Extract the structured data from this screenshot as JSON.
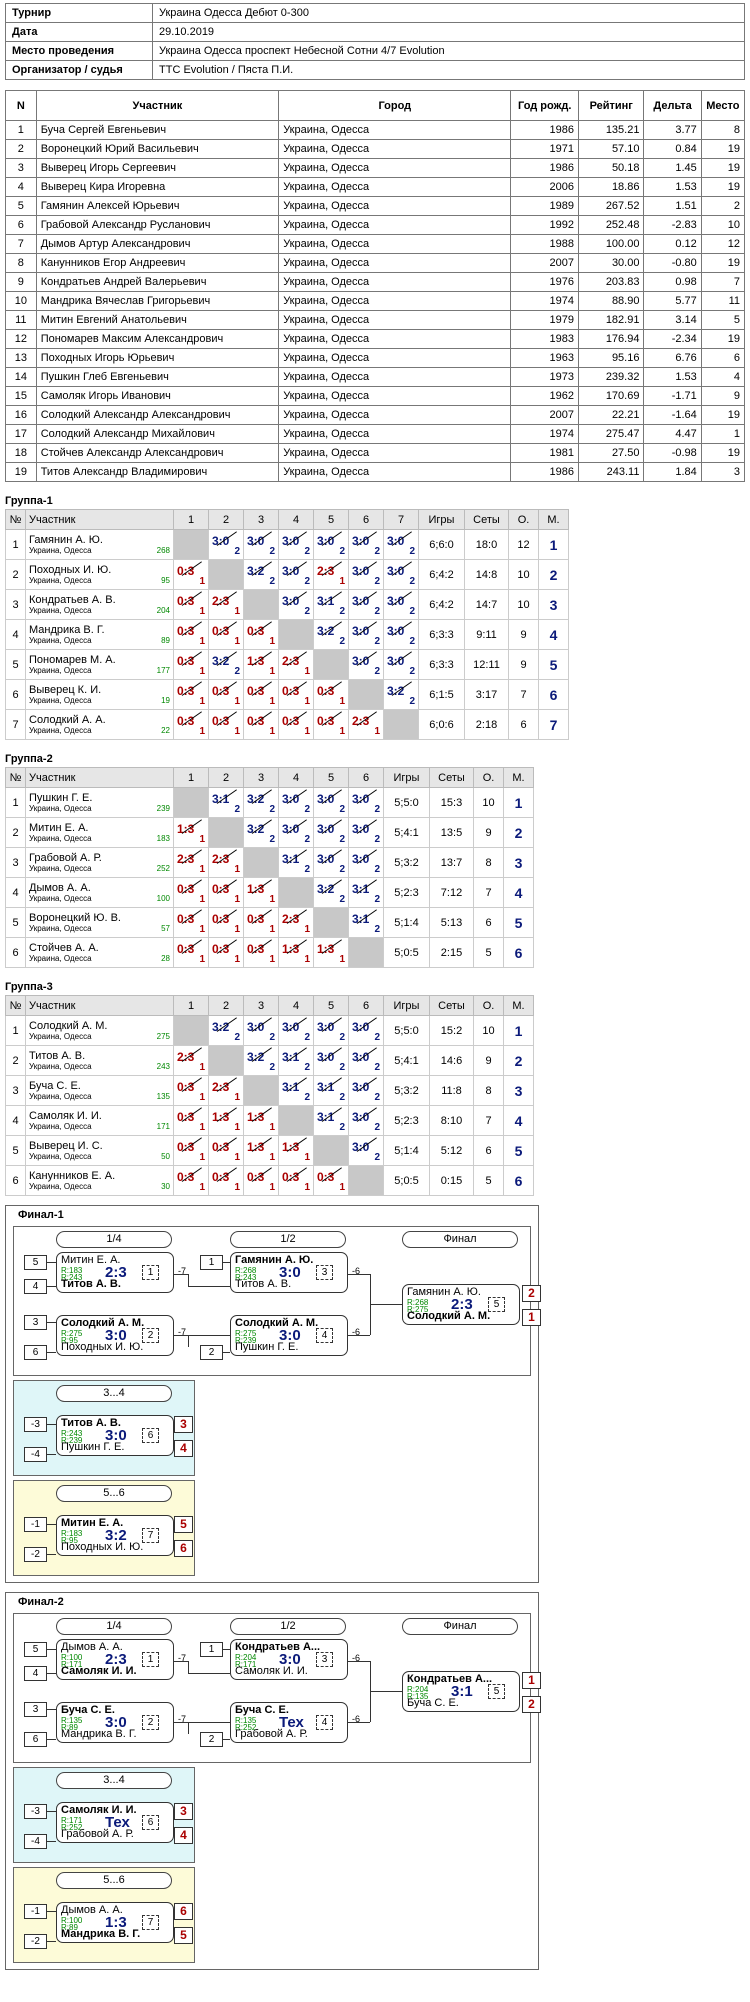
{
  "info": [
    {
      "k": "Турнир",
      "v": "Украина Одесса Дебют 0-300"
    },
    {
      "k": "Дата",
      "v": "29.10.2019"
    },
    {
      "k": "Место проведения",
      "v": "Украина Одесса проспект Небесной Сотни 4/7 Evolution"
    },
    {
      "k": "Организатор / судья",
      "v": "TTC Evolution / Пяста П.И."
    }
  ],
  "plist_headers": [
    "N",
    "Участник",
    "Город",
    "Год рожд.",
    "Рейтинг",
    "Дельта",
    "Место"
  ],
  "players": [
    [
      "1",
      "Буча Сергей Евгеньевич",
      "Украина, Одесса",
      "1986",
      "135.21",
      "3.77",
      "8"
    ],
    [
      "2",
      "Воронецкий Юрий Васильевич",
      "Украина, Одесса",
      "1971",
      "57.10",
      "0.84",
      "19"
    ],
    [
      "3",
      "Выверец Игорь Сергеевич",
      "Украина, Одесса",
      "1986",
      "50.18",
      "1.45",
      "19"
    ],
    [
      "4",
      "Выверец Кира Игоревна",
      "Украина, Одесса",
      "2006",
      "18.86",
      "1.53",
      "19"
    ],
    [
      "5",
      "Гамянин Алексей Юрьевич",
      "Украина, Одесса",
      "1989",
      "267.52",
      "1.51",
      "2"
    ],
    [
      "6",
      "Грабовой Александр Русланович",
      "Украина, Одесса",
      "1992",
      "252.48",
      "-2.83",
      "10"
    ],
    [
      "7",
      "Дымов Артур Александрович",
      "Украина, Одесса",
      "1988",
      "100.00",
      "0.12",
      "12"
    ],
    [
      "8",
      "Канунников Егор Андреевич",
      "Украина, Одесса",
      "2007",
      "30.00",
      "-0.80",
      "19"
    ],
    [
      "9",
      "Кондратьев Андрей Валерьевич",
      "Украина, Одесса",
      "1976",
      "203.83",
      "0.98",
      "7"
    ],
    [
      "10",
      "Мандрика Вячеслав Григорьевич",
      "Украина, Одесса",
      "1974",
      "88.90",
      "5.77",
      "11"
    ],
    [
      "11",
      "Митин Евгений Анатольевич",
      "Украина, Одесса",
      "1979",
      "182.91",
      "3.14",
      "5"
    ],
    [
      "12",
      "Пономарев Максим Александрович",
      "Украина, Одесса",
      "1983",
      "176.94",
      "-2.34",
      "19"
    ],
    [
      "13",
      "Походных Игорь Юрьевич",
      "Украина, Одесса",
      "1963",
      "95.16",
      "6.76",
      "6"
    ],
    [
      "14",
      "Пушкин Глеб Евгеньевич",
      "Украина, Одесса",
      "1973",
      "239.32",
      "1.53",
      "4"
    ],
    [
      "15",
      "Самоляк Игорь Иванович",
      "Украина, Одесса",
      "1962",
      "170.69",
      "-1.71",
      "9"
    ],
    [
      "16",
      "Солодкий Александр Александрович",
      "Украина, Одесса",
      "2007",
      "22.21",
      "-1.64",
      "19"
    ],
    [
      "17",
      "Солодкий Александр Михайлович",
      "Украина, Одесса",
      "1974",
      "275.47",
      "4.47",
      "1"
    ],
    [
      "18",
      "Стойчев Александр Александрович",
      "Украина, Одесса",
      "1981",
      "27.50",
      "-0.98",
      "19"
    ],
    [
      "19",
      "Титов Александр Владимирович",
      "Украина, Одесса",
      "1986",
      "243.11",
      "1.84",
      "3"
    ]
  ],
  "group_headers": {
    "no": "№",
    "name": "Участник",
    "games": "Игры",
    "sets": "Сеты",
    "pts": "О.",
    "place": "М."
  },
  "groups": [
    {
      "title": "Группа-1",
      "rows": [
        {
          "n": "1",
          "name": "Гамянин А. Ю.",
          "city": "Украина, Одесса",
          "rating": "268",
          "res": [
            null,
            "3:0|2",
            "3:0|2",
            "3:0|2",
            "3:0|2",
            "3:0|2",
            "3:0|2"
          ],
          "games": "6;6:0",
          "sets": "18:0",
          "pts": "12",
          "place": "1"
        },
        {
          "n": "2",
          "name": "Походных И. Ю.",
          "city": "Украина, Одесса",
          "rating": "95",
          "res": [
            "0:3|1",
            null,
            "3:2|2",
            "3:0|2",
            "2:3|1",
            "3:0|2",
            "3:0|2"
          ],
          "games": "6;4:2",
          "sets": "14:8",
          "pts": "10",
          "place": "2"
        },
        {
          "n": "3",
          "name": "Кондратьев А. В.",
          "city": "Украина, Одесса",
          "rating": "204",
          "res": [
            "0:3|1",
            "2:3|1",
            null,
            "3:0|2",
            "3:1|2",
            "3:0|2",
            "3:0|2"
          ],
          "games": "6;4:2",
          "sets": "14:7",
          "pts": "10",
          "place": "3"
        },
        {
          "n": "4",
          "name": "Мандрика В. Г.",
          "city": "Украина, Одесса",
          "rating": "89",
          "res": [
            "0:3|1",
            "0:3|1",
            "0:3|1",
            null,
            "3:2|2",
            "3:0|2",
            "3:0|2"
          ],
          "games": "6;3:3",
          "sets": "9:11",
          "pts": "9",
          "place": "4"
        },
        {
          "n": "5",
          "name": "Пономарев М. А.",
          "city": "Украина, Одесса",
          "rating": "177",
          "res": [
            "0:3|1",
            "3:2|2",
            "1:3|1",
            "2:3|1",
            null,
            "3:0|2",
            "3:0|2"
          ],
          "games": "6;3:3",
          "sets": "12:11",
          "pts": "9",
          "place": "5"
        },
        {
          "n": "6",
          "name": "Выверец К. И.",
          "city": "Украина, Одесса",
          "rating": "19",
          "res": [
            "0:3|1",
            "0:3|1",
            "0:3|1",
            "0:3|1",
            "0:3|1",
            null,
            "3:2|2"
          ],
          "games": "6;1:5",
          "sets": "3:17",
          "pts": "7",
          "place": "6"
        },
        {
          "n": "7",
          "name": "Солодкий А. А.",
          "city": "Украина, Одесса",
          "rating": "22",
          "res": [
            "0:3|1",
            "0:3|1",
            "0:3|1",
            "0:3|1",
            "0:3|1",
            "2:3|1",
            null
          ],
          "games": "6;0:6",
          "sets": "2:18",
          "pts": "6",
          "place": "7"
        }
      ]
    },
    {
      "title": "Группа-2",
      "rows": [
        {
          "n": "1",
          "name": "Пушкин Г. Е.",
          "city": "Украина, Одесса",
          "rating": "239",
          "res": [
            null,
            "3:1|2",
            "3:2|2",
            "3:0|2",
            "3:0|2",
            "3:0|2"
          ],
          "games": "5;5:0",
          "sets": "15:3",
          "pts": "10",
          "place": "1"
        },
        {
          "n": "2",
          "name": "Митин Е. А.",
          "city": "Украина, Одесса",
          "rating": "183",
          "res": [
            "1:3|1",
            null,
            "3:2|2",
            "3:0|2",
            "3:0|2",
            "3:0|2"
          ],
          "games": "5;4:1",
          "sets": "13:5",
          "pts": "9",
          "place": "2"
        },
        {
          "n": "3",
          "name": "Грабовой А. Р.",
          "city": "Украина, Одесса",
          "rating": "252",
          "res": [
            "2:3|1",
            "2:3|1",
            null,
            "3:1|2",
            "3:0|2",
            "3:0|2"
          ],
          "games": "5;3:2",
          "sets": "13:7",
          "pts": "8",
          "place": "3"
        },
        {
          "n": "4",
          "name": "Дымов А. А.",
          "city": "Украина, Одесса",
          "rating": "100",
          "res": [
            "0:3|1",
            "0:3|1",
            "1:3|1",
            null,
            "3:2|2",
            "3:1|2"
          ],
          "games": "5;2:3",
          "sets": "7:12",
          "pts": "7",
          "place": "4"
        },
        {
          "n": "5",
          "name": "Воронецкий Ю. В.",
          "city": "Украина, Одесса",
          "rating": "57",
          "res": [
            "0:3|1",
            "0:3|1",
            "0:3|1",
            "2:3|1",
            null,
            "3:1|2"
          ],
          "games": "5;1:4",
          "sets": "5:13",
          "pts": "6",
          "place": "5"
        },
        {
          "n": "6",
          "name": "Стойчев А. А.",
          "city": "Украина, Одесса",
          "rating": "28",
          "res": [
            "0:3|1",
            "0:3|1",
            "0:3|1",
            "1:3|1",
            "1:3|1",
            null
          ],
          "games": "5;0:5",
          "sets": "2:15",
          "pts": "5",
          "place": "6"
        }
      ]
    },
    {
      "title": "Группа-3",
      "rows": [
        {
          "n": "1",
          "name": "Солодкий А. М.",
          "city": "Украина, Одесса",
          "rating": "275",
          "res": [
            null,
            "3:2|2",
            "3:0|2",
            "3:0|2",
            "3:0|2",
            "3:0|2"
          ],
          "games": "5;5:0",
          "sets": "15:2",
          "pts": "10",
          "place": "1"
        },
        {
          "n": "2",
          "name": "Титов А. В.",
          "city": "Украина, Одесса",
          "rating": "243",
          "res": [
            "2:3|1",
            null,
            "3:2|2",
            "3:1|2",
            "3:0|2",
            "3:0|2"
          ],
          "games": "5;4:1",
          "sets": "14:6",
          "pts": "9",
          "place": "2"
        },
        {
          "n": "3",
          "name": "Буча С. Е.",
          "city": "Украина, Одесса",
          "rating": "135",
          "res": [
            "0:3|1",
            "2:3|1",
            null,
            "3:1|2",
            "3:1|2",
            "3:0|2"
          ],
          "games": "5;3:2",
          "sets": "11:8",
          "pts": "8",
          "place": "3"
        },
        {
          "n": "4",
          "name": "Самоляк И. И.",
          "city": "Украина, Одесса",
          "rating": "171",
          "res": [
            "0:3|1",
            "1:3|1",
            "1:3|1",
            null,
            "3:1|2",
            "3:0|2"
          ],
          "games": "5;2:3",
          "sets": "8:10",
          "pts": "7",
          "place": "4"
        },
        {
          "n": "5",
          "name": "Выверец И. С.",
          "city": "Украина, Одесса",
          "rating": "50",
          "res": [
            "0:3|1",
            "0:3|1",
            "1:3|1",
            "1:3|1",
            null,
            "3:0|2"
          ],
          "games": "5;1:4",
          "sets": "5:12",
          "pts": "6",
          "place": "5"
        },
        {
          "n": "6",
          "name": "Канунников Е. А.",
          "city": "Украина, Одесса",
          "rating": "30",
          "res": [
            "0:3|1",
            "0:3|1",
            "0:3|1",
            "0:3|1",
            "0:3|1",
            null
          ],
          "games": "5;0:5",
          "sets": "0:15",
          "pts": "5",
          "place": "6"
        }
      ]
    }
  ],
  "finals": [
    {
      "title": "Финал-1",
      "labels": {
        "q": "1/4",
        "s": "1/2",
        "f": "Финал"
      },
      "qf1": {
        "seed1": "5",
        "seed2": "4",
        "p1": "Митин Е. А.",
        "r1": "R:183",
        "r2": "R:243",
        "p2": "Титов А. В.",
        "score": "2:3",
        "mn": "1",
        "ref": "-7"
      },
      "qf2": {
        "seed1": "3",
        "seed2": "6",
        "p1": "Солодкий А. М.",
        "r1": "R:275",
        "r2": "R:95",
        "p2": "Походных И. Ю.",
        "score": "3:0",
        "mn": "2",
        "ref": "-7"
      },
      "sf1": {
        "seed": "1",
        "p1": "Гамянин А. Ю.",
        "r1": "R:268",
        "r2": "R:243",
        "p2": "Титов А. В.",
        "score": "3:0",
        "mn": "3",
        "ref": "-6"
      },
      "sf2": {
        "seed": "2",
        "p1": "Солодкий А. М.",
        "r1": "R:275",
        "r2": "R:239",
        "p2": "Пушкин Г. Е.",
        "score": "3:0",
        "mn": "4",
        "ref": "-6"
      },
      "fin": {
        "p1": "Гамянин А. Ю.",
        "r1": "R:268",
        "r2": "R:275",
        "p2": "Солодкий А. М.",
        "score": "2:3",
        "mn": "5",
        "pl1": "2",
        "pl2": "1"
      },
      "m34": {
        "label": "3...4",
        "s1": "-3",
        "s2": "-4",
        "p1": "Титов А. В.",
        "r1": "R:243",
        "r2": "R:239",
        "p2": "Пушкин Г. Е.",
        "score": "3:0",
        "mn": "6",
        "pl1": "3",
        "pl2": "4"
      },
      "m56": {
        "label": "5...6",
        "s1": "-1",
        "s2": "-2",
        "p1": "Митин Е. А.",
        "r1": "R:183",
        "r2": "R:95",
        "p2": "Походных И. Ю.",
        "score": "3:2",
        "mn": "7",
        "pl1": "5",
        "pl2": "6"
      }
    },
    {
      "title": "Финал-2",
      "labels": {
        "q": "1/4",
        "s": "1/2",
        "f": "Финал"
      },
      "qf1": {
        "seed1": "5",
        "seed2": "4",
        "p1": "Дымов А. А.",
        "r1": "R:100",
        "r2": "R:171",
        "p2": "Самоляк И. И.",
        "score": "2:3",
        "mn": "1",
        "ref": "-7"
      },
      "qf2": {
        "seed1": "3",
        "seed2": "6",
        "p1": "Буча С. Е.",
        "r1": "R:135",
        "r2": "R:89",
        "p2": "Мандрика В. Г.",
        "score": "3:0",
        "mn": "2",
        "ref": "-7"
      },
      "sf1": {
        "seed": "1",
        "p1": "Кондратьев А...",
        "r1": "R:204",
        "r2": "R:171",
        "p2": "Самоляк И. И.",
        "score": "3:0",
        "mn": "3",
        "ref": "-6"
      },
      "sf2": {
        "seed": "2",
        "p1": "Буча С. Е.",
        "r1": "R:135",
        "r2": "R:252",
        "p2": "Грабовой А. Р.",
        "score": "Тех",
        "mn": "4",
        "ref": "-6"
      },
      "fin": {
        "p1": "Кондратьев А...",
        "r1": "R:204",
        "r2": "R:135",
        "p2": "Буча С. Е.",
        "score": "3:1",
        "mn": "5",
        "pl1": "1",
        "pl2": "2"
      },
      "m34": {
        "label": "3...4",
        "s1": "-3",
        "s2": "-4",
        "p1": "Самоляк И. И.",
        "r1": "R:171",
        "r2": "R:252",
        "p2": "Грабовой А. Р.",
        "score": "Тех",
        "mn": "6",
        "pl1": "3",
        "pl2": "4"
      },
      "m56": {
        "label": "5...6",
        "s1": "-1",
        "s2": "-2",
        "p1": "Дымов А. А.",
        "r1": "R:100",
        "r2": "R:89",
        "p2": "Мандрика В. Г.",
        "score": "1:3",
        "mn": "7",
        "pl1": "6",
        "pl2": "5"
      }
    }
  ],
  "colors": {
    "win": "#0b1a7a",
    "loss": "#aa0000",
    "rating": "#008800",
    "self_cell": "#c8c8c8",
    "bronze_bg": "#dff6f8",
    "fifth_bg": "#fdfbd8"
  }
}
